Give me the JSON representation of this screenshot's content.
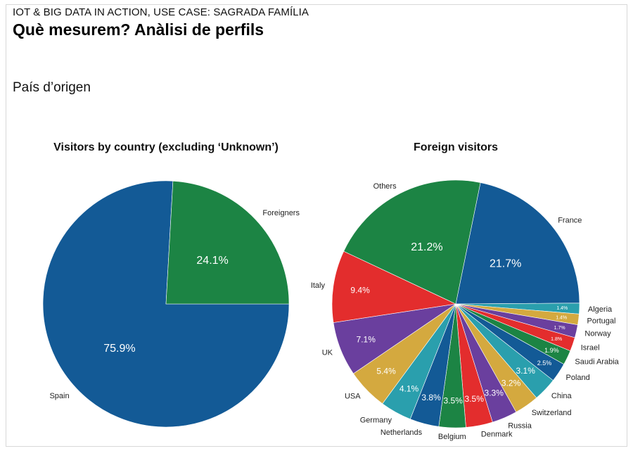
{
  "slide": {
    "kicker": "IOT & BIG DATA IN ACTION, USE CASE: SAGRADA FAMÍLIA",
    "headline": "Què mesurem? Anàlisi de perfils",
    "section": "País d’origen"
  },
  "colors": {
    "blue": "#135a96",
    "green": "#1c8444",
    "red": "#e32d2d",
    "purple": "#6a3f9e",
    "gold": "#d4a93f",
    "teal": "#2a9fad"
  },
  "chart_data": [
    {
      "type": "pie",
      "title": "Visitors by country (excluding ‘Unknown’)",
      "slices": [
        {
          "label": "Spain",
          "value": 75.9,
          "display": "75.9%",
          "color": "#135a96"
        },
        {
          "label": "Foreigners",
          "value": 24.1,
          "display": "24.1%",
          "color": "#1c8444"
        }
      ]
    },
    {
      "type": "pie",
      "title": "Foreign visitors",
      "slices": [
        {
          "label": "France",
          "value": 21.7,
          "display": "21.7%",
          "color": "#135a96"
        },
        {
          "label": "Algeria",
          "value": 1.4,
          "display": "1.4%",
          "color": "#2a9fad"
        },
        {
          "label": "Portugal",
          "value": 1.4,
          "display": "1.4%",
          "color": "#d4a93f"
        },
        {
          "label": "Norway",
          "value": 1.7,
          "display": "1.7%",
          "color": "#6a3f9e"
        },
        {
          "label": "Israel",
          "value": 1.8,
          "display": "1.8%",
          "color": "#e32d2d"
        },
        {
          "label": "Saudi Arabia",
          "value": 1.9,
          "display": "1.9%",
          "color": "#1c8444"
        },
        {
          "label": "Poland",
          "value": 2.5,
          "display": "2.5%",
          "color": "#135a96"
        },
        {
          "label": "China",
          "value": 3.1,
          "display": "3.1%",
          "color": "#2a9fad"
        },
        {
          "label": "Switzerland",
          "value": 3.2,
          "display": "3.2%",
          "color": "#d4a93f"
        },
        {
          "label": "Russia",
          "value": 3.3,
          "display": "3.3%",
          "color": "#6a3f9e"
        },
        {
          "label": "Denmark",
          "value": 3.5,
          "display": "3.5%",
          "color": "#e32d2d"
        },
        {
          "label": "Belgium",
          "value": 3.5,
          "display": "3.5%",
          "color": "#1c8444"
        },
        {
          "label": "Netherlands",
          "value": 3.8,
          "display": "3.8%",
          "color": "#135a96"
        },
        {
          "label": "Germany",
          "value": 4.1,
          "display": "4.1%",
          "color": "#2a9fad"
        },
        {
          "label": "USA",
          "value": 5.4,
          "display": "5.4%",
          "color": "#d4a93f"
        },
        {
          "label": "UK",
          "value": 7.1,
          "display": "7.1%",
          "color": "#6a3f9e"
        },
        {
          "label": "Italy",
          "value": 9.4,
          "display": "9.4%",
          "color": "#e32d2d"
        },
        {
          "label": "Others",
          "value": 21.2,
          "display": "21.2%",
          "color": "#1c8444"
        }
      ]
    }
  ]
}
